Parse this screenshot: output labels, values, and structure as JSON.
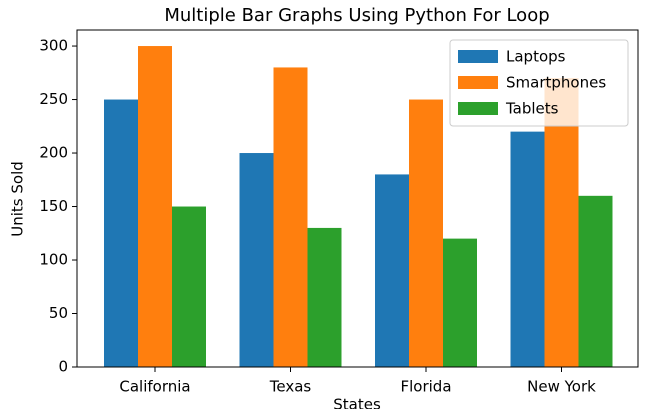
{
  "chart_data": {
    "type": "bar",
    "title": "Multiple Bar Graphs Using Python For Loop",
    "x_label": "States",
    "y_label": "Units Sold",
    "categories": [
      "California",
      "Texas",
      "Florida",
      "New York"
    ],
    "series": [
      {
        "name": "Laptops",
        "color": "#1f77b4",
        "values": [
          250,
          200,
          180,
          220
        ]
      },
      {
        "name": "Smartphones",
        "color": "#ff7f0e",
        "values": [
          300,
          280,
          250,
          270
        ]
      },
      {
        "name": "Tablets",
        "color": "#2ca02c",
        "values": [
          150,
          130,
          120,
          160
        ]
      }
    ],
    "ylim": [
      0,
      315
    ],
    "yticks": [
      0,
      50,
      100,
      150,
      200,
      250,
      300
    ],
    "legend": "upper right"
  }
}
